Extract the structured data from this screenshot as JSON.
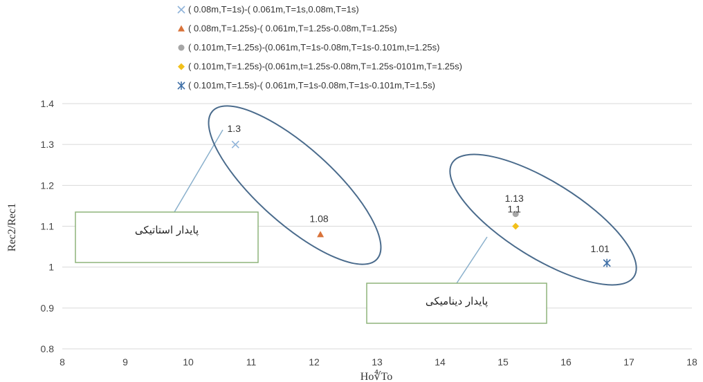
{
  "chart_data": {
    "type": "scatter",
    "xlabel": "Ho∜To",
    "ylabel": "Rec2/Rec1",
    "xlim": [
      8,
      18
    ],
    "ylim": [
      0.8,
      1.4
    ],
    "x_ticks": [
      "8",
      "9",
      "10",
      "11",
      "12",
      "13",
      "14",
      "15",
      "16",
      "17",
      "18"
    ],
    "y_ticks": [
      "0.8",
      "0.9",
      "1",
      "1.1",
      "1.2",
      "1.3",
      "1.4"
    ],
    "grid": "horizontal",
    "legend_position": "top",
    "series": [
      {
        "name": "( 0.08m,T=1s)-( 0.061m,T=1s,0.08m,T=1s)",
        "marker": "x",
        "color": "#8fb3d9",
        "points": [
          {
            "x": 10.75,
            "y": 1.3,
            "label": "1.3"
          }
        ]
      },
      {
        "name": "( 0.08m,T=1.25s)-( 0.061m,T=1.25s-0.08m,T=1.25s)",
        "marker": "triangle",
        "color": "#d9733a",
        "points": [
          {
            "x": 12.1,
            "y": 1.08,
            "label": "1.08"
          }
        ]
      },
      {
        "name": "( 0.101m,T=1.25s)-(0.061m,T=1s-0.08m,T=1s-0.101m,t=1.25s)",
        "marker": "circle",
        "color": "#a6a6a6",
        "points": [
          {
            "x": 15.2,
            "y": 1.13,
            "label": "1.13"
          }
        ]
      },
      {
        "name": "( 0.101m,T=1.25s)-(0.061m,t=1.25s-0.08m,T=1.25s-0101m,T=1.25s)",
        "marker": "diamond",
        "color": "#f2c01a",
        "points": [
          {
            "x": 15.2,
            "y": 1.1,
            "label": "1.1"
          }
        ]
      },
      {
        "name": "( 0.101m,T=1.5s)-( 0.061m,T=1s-0.08m,T=1s-0.101m,T=1.5s)",
        "marker": "star",
        "color": "#3f6fa6",
        "points": [
          {
            "x": 16.65,
            "y": 1.01,
            "label": "1.01"
          }
        ]
      }
    ],
    "annotations": [
      {
        "text": "پایدار استاتیکی"
      },
      {
        "text": "پایدار دینامیکی"
      }
    ]
  }
}
